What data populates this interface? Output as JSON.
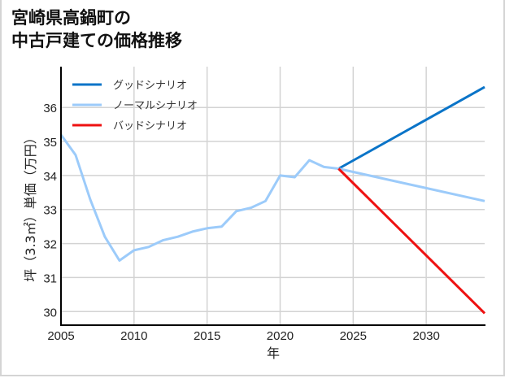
{
  "chart_data": {
    "type": "line",
    "title": "宮崎県高鍋町の\n中古戸建ての価格推移",
    "title_lines": [
      "宮崎県高鍋町の",
      "中古戸建ての価格推移"
    ],
    "xlabel": "年",
    "ylabel": "坪（3.3㎡）単価（万円）",
    "xlim": [
      2005,
      2034
    ],
    "ylim": [
      29.6,
      37.2
    ],
    "xticks": [
      2005,
      2010,
      2015,
      2020,
      2025,
      2030
    ],
    "yticks": [
      30,
      31,
      32,
      33,
      34,
      35,
      36
    ],
    "grid": true,
    "legend_position": "upper left",
    "series": [
      {
        "name": "グッドシナリオ",
        "color": "#0a74c8",
        "x": [
          2024,
          2034
        ],
        "values": [
          34.2,
          36.6
        ]
      },
      {
        "name": "ノーマルシナリオ",
        "color": "#9ccbfa",
        "x": [
          2005,
          2006,
          2007,
          2008,
          2009,
          2010,
          2011,
          2012,
          2013,
          2014,
          2015,
          2016,
          2017,
          2018,
          2019,
          2020,
          2021,
          2022,
          2023,
          2024,
          2034
        ],
        "values": [
          35.2,
          34.6,
          33.3,
          32.2,
          31.5,
          31.8,
          31.9,
          32.1,
          32.2,
          32.35,
          32.45,
          32.5,
          32.95,
          33.05,
          33.25,
          34.0,
          33.95,
          34.45,
          34.25,
          34.2,
          33.25
        ]
      },
      {
        "name": "バッドシナリオ",
        "color": "#ee1111",
        "x": [
          2024,
          2034
        ],
        "values": [
          34.2,
          29.95
        ]
      }
    ]
  },
  "labels": {
    "title_line1": "宮崎県高鍋町の",
    "title_line2": "中古戸建ての価格推移",
    "xlabel": "年",
    "ylabel": "坪（3.3㎡）単価（万円）",
    "legend": [
      "グッドシナリオ",
      "ノーマルシナリオ",
      "バッドシナリオ"
    ],
    "xticks": [
      "2005",
      "2010",
      "2015",
      "2020",
      "2025",
      "2030"
    ],
    "yticks": [
      "30",
      "31",
      "32",
      "33",
      "34",
      "35",
      "36"
    ]
  }
}
